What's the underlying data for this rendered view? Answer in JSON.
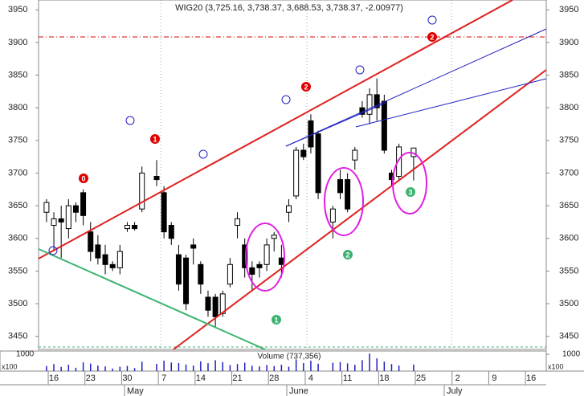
{
  "chart_data": {
    "type": "candlestick",
    "title": "WIG20 (3,725.16, 3,738.37, 3,688.53, 3,738.37, -2.00977)",
    "categories": [
      null,
      "16",
      null,
      null,
      null,
      null,
      "23",
      null,
      null,
      null,
      null,
      "30",
      null,
      null,
      null,
      null,
      "7",
      null,
      null,
      null,
      null,
      "14",
      null,
      null,
      null,
      null,
      "21",
      null,
      null,
      null,
      null,
      "28",
      null,
      null,
      null,
      null,
      "4",
      null,
      null,
      null,
      null,
      "11",
      null,
      null,
      null,
      null,
      "18",
      null,
      null,
      null,
      null,
      "25",
      null,
      null,
      null,
      null,
      "2",
      null,
      null,
      null,
      null,
      "9",
      null,
      null,
      null,
      null,
      "16",
      null,
      null
    ],
    "open": [
      3640,
      3620,
      3630,
      3615,
      3650,
      3670,
      3610,
      3590,
      3575,
      3560,
      3555,
      3615,
      3620,
      3645,
      null,
      3695,
      3670,
      3620,
      3575,
      3570,
      3590,
      3560,
      3510,
      3510,
      3485,
      3530,
      3620,
      3590,
      3555,
      3560,
      3560,
      3600,
      3570,
      3640,
      3665,
      3735,
      3780,
      3760,
      null,
      3625,
      3690,
      3690,
      3720,
      3800,
      3790,
      3820,
      3810,
      3700,
      3695,
      null,
      3725.16,
      null,
      null,
      null,
      null,
      null,
      null,
      null,
      null,
      null,
      null,
      null,
      null,
      null,
      null,
      null,
      null,
      null,
      null
    ],
    "high": [
      3660,
      3640,
      3650,
      3660,
      3655,
      3675,
      3625,
      3605,
      3590,
      3565,
      3590,
      3625,
      3625,
      3710,
      null,
      3720,
      3680,
      3625,
      3590,
      3575,
      3600,
      3565,
      3520,
      3515,
      3520,
      3570,
      3640,
      3600,
      3565,
      3565,
      3600,
      3610,
      3590,
      3660,
      3740,
      3745,
      3790,
      3765,
      null,
      3650,
      3705,
      3700,
      3740,
      3810,
      3830,
      3845,
      3820,
      3705,
      3745,
      null,
      3738.37,
      null,
      null,
      null,
      null,
      null,
      null,
      null,
      null,
      null,
      null,
      null,
      null,
      null,
      null,
      null,
      null,
      null,
      null
    ],
    "low": [
      3625,
      3580,
      3570,
      3600,
      3625,
      3620,
      3565,
      3560,
      3545,
      3550,
      3545,
      3610,
      3612,
      3640,
      null,
      3680,
      3600,
      3590,
      3520,
      3490,
      3560,
      3515,
      3480,
      3465,
      3480,
      3525,
      3600,
      3540,
      3520,
      3540,
      3550,
      3580,
      3540,
      3625,
      3660,
      3720,
      3730,
      3660,
      null,
      3600,
      3660,
      3640,
      3705,
      3785,
      3775,
      3780,
      3730,
      3680,
      3690,
      null,
      3688.53,
      null,
      null,
      null,
      null,
      null,
      null,
      null,
      null,
      null,
      null,
      null,
      null,
      null,
      null,
      null,
      null,
      null,
      null
    ],
    "close": [
      3655,
      3630,
      3625,
      3650,
      3640,
      3635,
      3580,
      3570,
      3560,
      3555,
      3580,
      3620,
      3615,
      3700,
      null,
      3690,
      3610,
      3600,
      3530,
      3500,
      3585,
      3530,
      3490,
      3480,
      3515,
      3560,
      3630,
      3555,
      3545,
      3555,
      3590,
      3605,
      3560,
      3650,
      3735,
      3725,
      3740,
      3670,
      null,
      3645,
      3670,
      3645,
      3735,
      3790,
      3820,
      3800,
      3735,
      3690,
      3740,
      null,
      3738.37,
      null,
      null,
      null,
      null,
      null,
      null,
      null,
      null,
      null,
      null,
      null,
      null,
      null,
      null,
      null,
      null,
      null,
      null
    ],
    "up_color": "#ffffff",
    "down_color": "#000000",
    "ylim": [
      3430,
      3965
    ],
    "yticks": [
      3450,
      3500,
      3550,
      3600,
      3650,
      3700,
      3750,
      3800,
      3850,
      3900,
      3950
    ],
    "months": [
      "May",
      "June",
      "July"
    ],
    "volume": {
      "label": "Volume (737,356)",
      "unit": "x100",
      "color": "#2020c0",
      "ylim": [
        0,
        1100
      ],
      "yticks": [
        1000
      ],
      "values": [
        300,
        420,
        250,
        380,
        200,
        520,
        450,
        330,
        280,
        150,
        260,
        310,
        180,
        560,
        null,
        430,
        620,
        510,
        480,
        390,
        330,
        580,
        470,
        650,
        540,
        360,
        420,
        500,
        320,
        280,
        360,
        300,
        380,
        260,
        700,
        480,
        620,
        440,
        null,
        500,
        540,
        460,
        380,
        650,
        1050,
        760,
        560,
        420,
        330,
        null,
        390,
        null,
        null,
        null,
        null,
        null,
        null,
        null,
        null,
        null,
        null,
        null,
        null,
        null,
        null,
        null,
        null,
        null,
        null
      ]
    },
    "annotations": [
      {
        "text": "0",
        "color": "#e00000"
      },
      {
        "text": "1",
        "color": "#e00000"
      },
      {
        "text": "2",
        "color": "#e00000"
      },
      {
        "text": "2",
        "color": "#e00000"
      },
      {
        "text": "1",
        "color": "#3cb371"
      },
      {
        "text": "2",
        "color": "#3cb371"
      },
      {
        "text": "3",
        "color": "#3cb371"
      }
    ]
  }
}
